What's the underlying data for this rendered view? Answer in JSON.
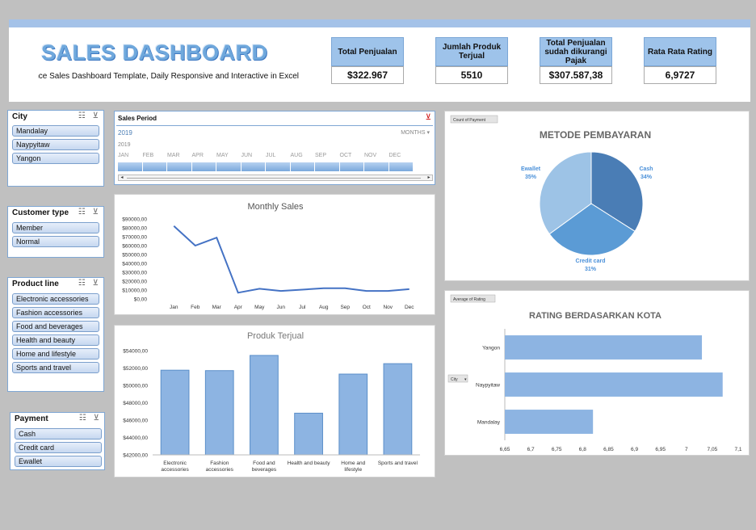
{
  "header": {
    "title": "SALES DASHBOARD",
    "subtitle": "Performance Sales Dashboard Template, Daily Responsive and Interactive in Excel"
  },
  "kpis": [
    {
      "label": "Total Penjualan",
      "value": "$322.967"
    },
    {
      "label": "Jumlah Produk Terjual",
      "value": "5510"
    },
    {
      "label": "Total Penjualan sudah dikurangi Pajak",
      "value": "$307.587,38"
    },
    {
      "label": "Rata Rata Rating",
      "value": "6,9727"
    }
  ],
  "slicers": {
    "city": {
      "title": "City",
      "items": [
        "Mandalay",
        "Naypyitaw",
        "Yangon"
      ]
    },
    "customer_type": {
      "title": "Customer type",
      "items": [
        "Member",
        "Normal"
      ]
    },
    "product_line": {
      "title": "Product line",
      "items": [
        "Electronic accessories",
        "Fashion accessories",
        "Food and beverages",
        "Health and beauty",
        "Home and lifestyle",
        "Sports and travel"
      ]
    },
    "payment": {
      "title": "Payment",
      "items": [
        "Cash",
        "Credit card",
        "Ewallet"
      ]
    }
  },
  "timeline": {
    "title": "Sales Period",
    "year_selected": "2019",
    "year_label": "2019",
    "level": "MONTHS",
    "months": [
      "JAN",
      "FEB",
      "MAR",
      "APR",
      "MAY",
      "JUN",
      "JUL",
      "AUG",
      "SEP",
      "OCT",
      "NOV",
      "DEC"
    ]
  },
  "colors": {
    "accent": "#4472c4",
    "bar": "#8db4e2",
    "pie_cash": "#4a7db5",
    "pie_credit": "#5b9bd5",
    "pie_ewallet": "#9dc3e6"
  },
  "chart_data": [
    {
      "type": "line",
      "title": "Monthly Sales",
      "categories": [
        "Jan",
        "Feb",
        "Mar",
        "Apr",
        "May",
        "Jun",
        "Jul",
        "Aug",
        "Sep",
        "Oct",
        "Nov",
        "Dec"
      ],
      "values": [
        82000,
        60000,
        69000,
        7000,
        11500,
        9000,
        10500,
        12000,
        12000,
        9000,
        9000,
        11000
      ],
      "ylim": [
        0,
        90000
      ],
      "yticks": [
        "$0,00",
        "$10000,00",
        "$20000,00",
        "$30000,00",
        "$40000,00",
        "$50000,00",
        "$60000,00",
        "$70000,00",
        "$80000,00",
        "$90000,00"
      ]
    },
    {
      "type": "bar",
      "title": "Produk Terjual",
      "categories": [
        "Electronic accessories",
        "Fashion accessories",
        "Food and beverages",
        "Health and beauty",
        "Home and lifestyle",
        "Sports and travel"
      ],
      "values": [
        51750,
        51700,
        53450,
        46800,
        51300,
        52500
      ],
      "ylim": [
        42000,
        54000
      ],
      "yticks": [
        "$42000,00",
        "$44000,00",
        "$46000,00",
        "$48000,00",
        "$50000,00",
        "$52000,00",
        "$54000,00"
      ]
    },
    {
      "type": "pie",
      "title": "METODE PEMBAYARAN",
      "field_button": "Count of Payment",
      "slices": [
        {
          "name": "Cash",
          "value": 34,
          "label": "Cash",
          "pct": "34%"
        },
        {
          "name": "Credit card",
          "value": 31,
          "label": "Credit card",
          "pct": "31%"
        },
        {
          "name": "Ewallet",
          "value": 35,
          "label": "Ewallet",
          "pct": "35%"
        }
      ]
    },
    {
      "type": "bar",
      "orientation": "horizontal",
      "title": "RATING BERDASARKAN KOTA",
      "field_button": "Average of Rating",
      "axis_button": "City",
      "categories": [
        "Yangon",
        "Naypyitaw",
        "Mandalay"
      ],
      "values": [
        7.03,
        7.07,
        6.82
      ],
      "xlim": [
        6.65,
        7.1
      ],
      "xticks": [
        "6,65",
        "6,7",
        "6,75",
        "6,8",
        "6,85",
        "6,9",
        "6,95",
        "7",
        "7,05",
        "7,1"
      ]
    }
  ]
}
